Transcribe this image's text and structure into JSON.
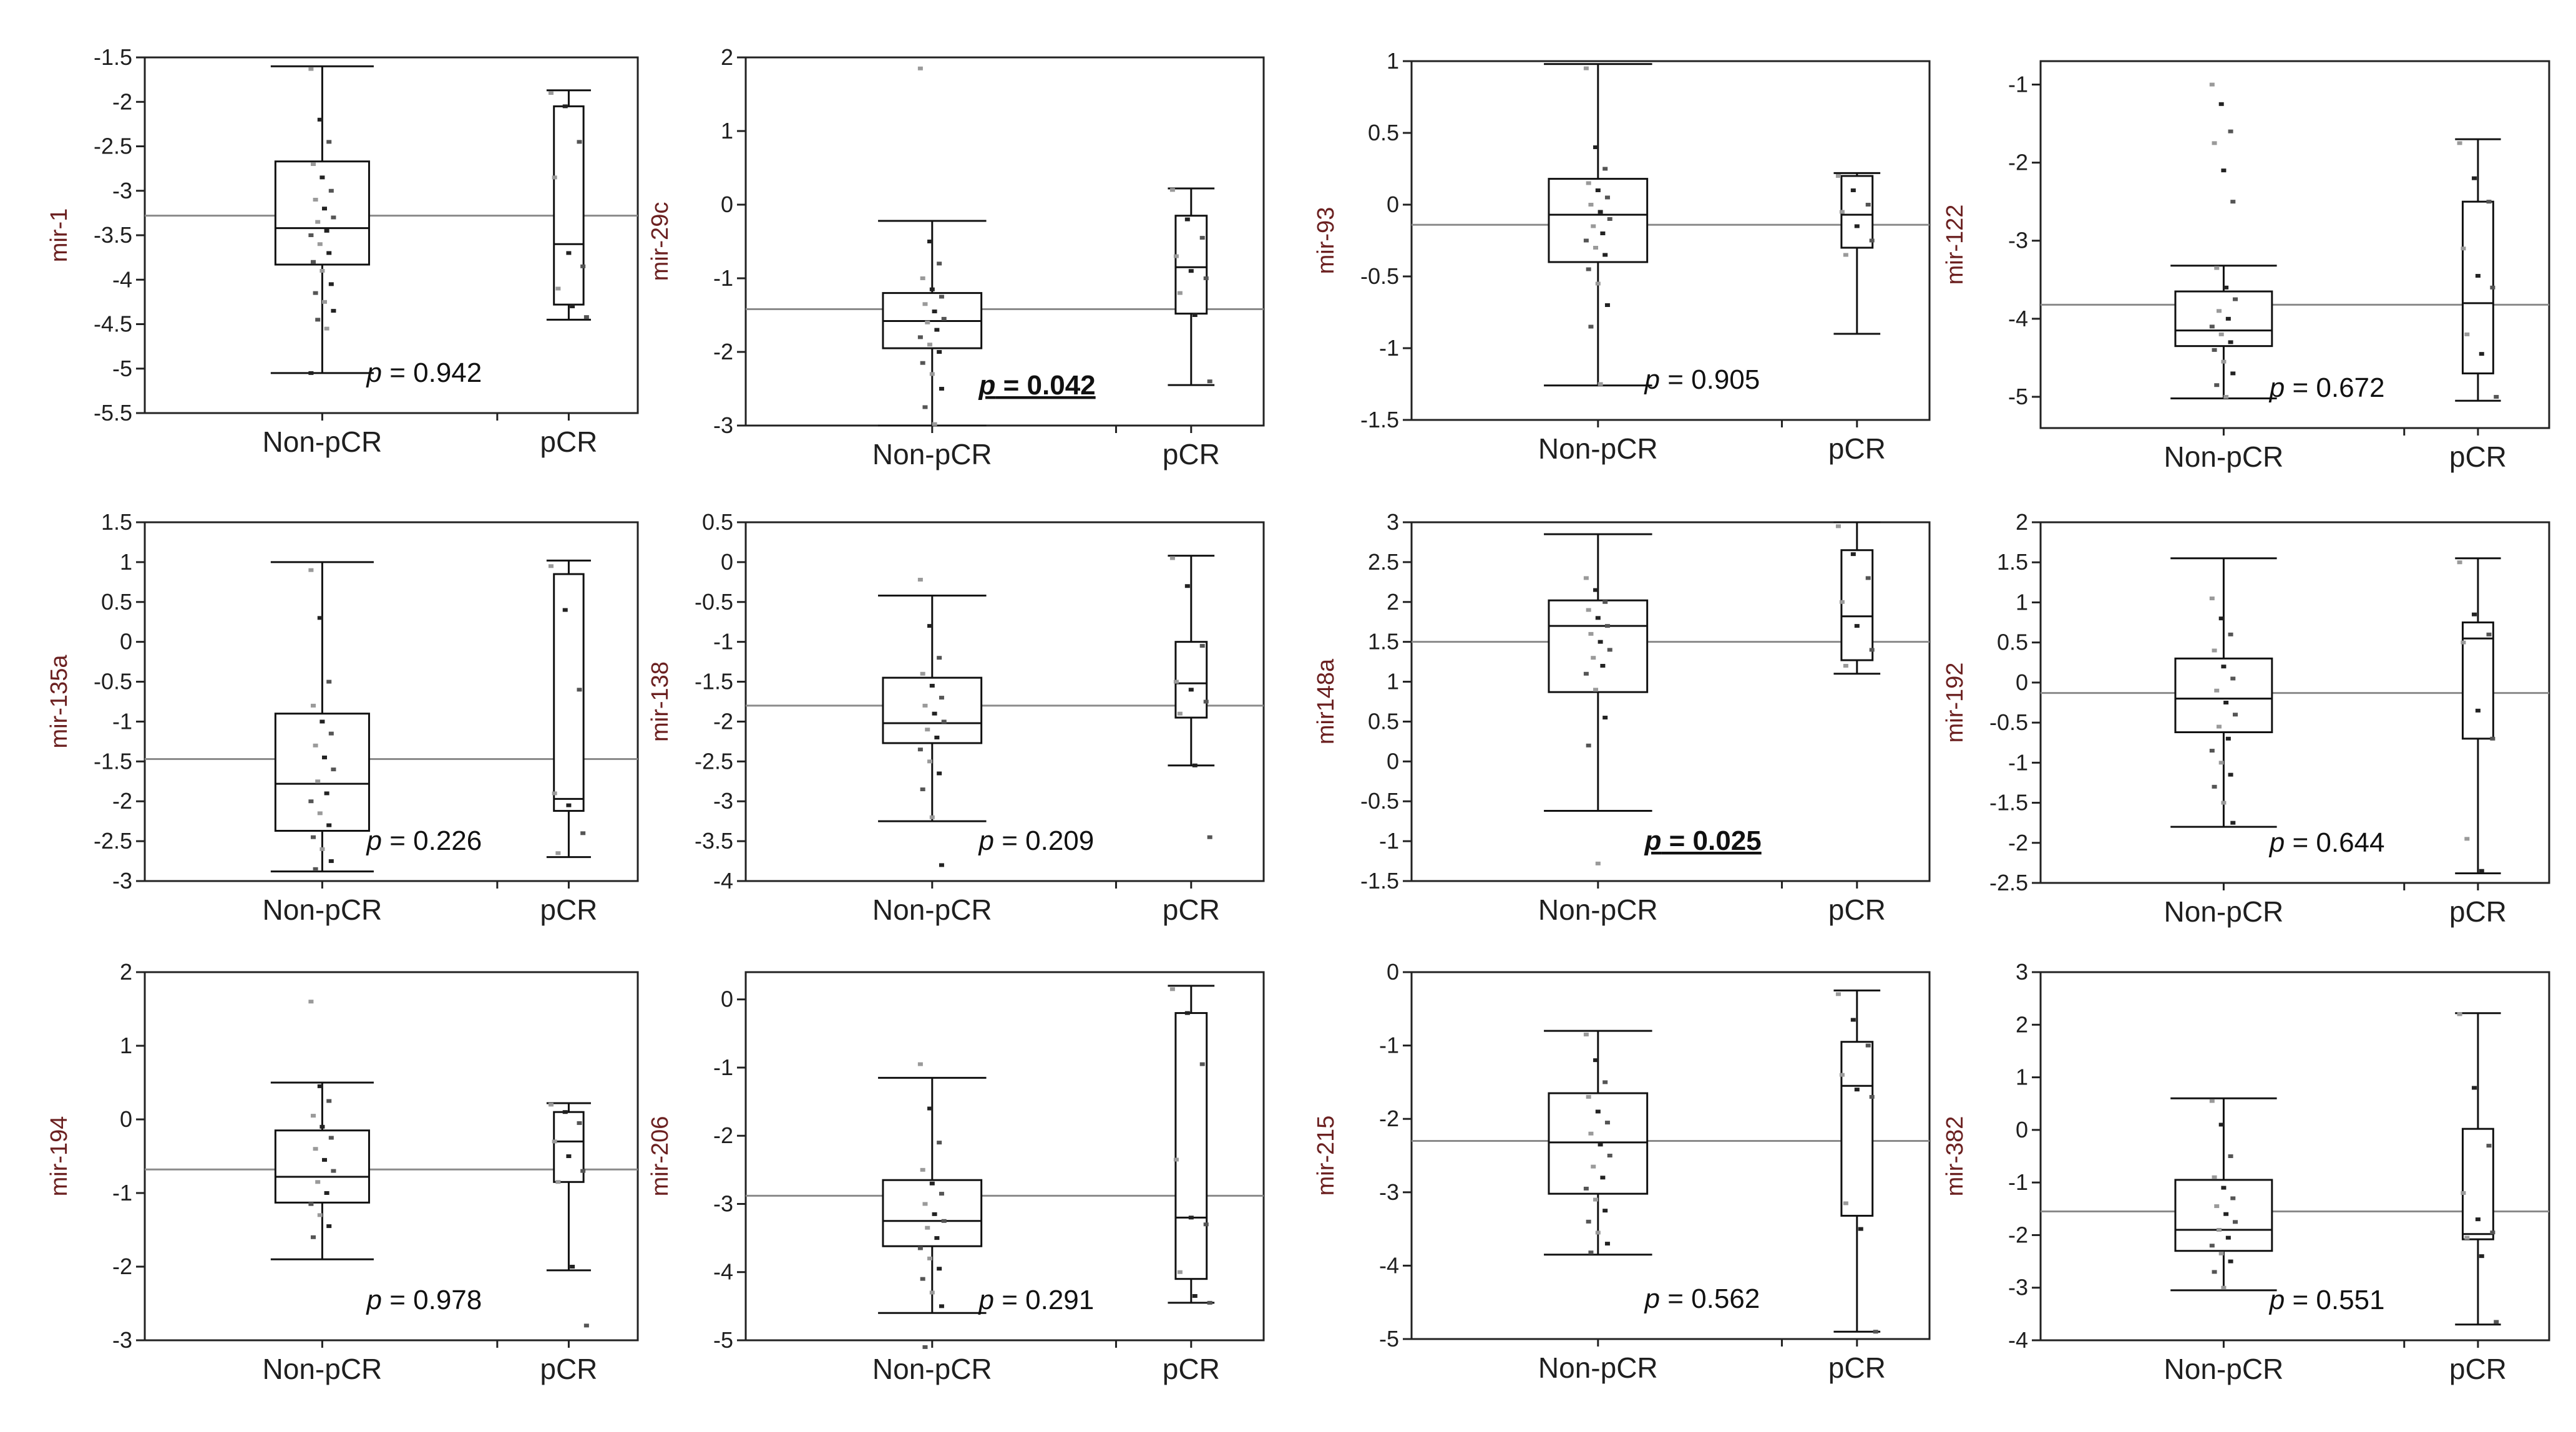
{
  "categories": [
    "Non-pCR",
    "pCR"
  ],
  "chart_data": [
    {
      "type": "box",
      "ylabel": "mir-1",
      "ylim": [
        -5.5,
        -1.5
      ],
      "yticks": [
        "-1.5",
        "-2",
        "-2.5",
        "-3",
        "-3.5",
        "-4",
        "-4.5",
        "-5",
        "-5.5"
      ],
      "p_prefix": "p",
      "p_value": " = 0.942",
      "significant": false,
      "grand_mean": -3.28,
      "groups": [
        {
          "name": "Non-pCR",
          "whisker_low": -5.05,
          "q1": -3.83,
          "median": -3.42,
          "q3": -2.67,
          "whisker_high": -1.6,
          "points": [
            -1.63,
            -2.2,
            -2.45,
            -2.7,
            -2.85,
            -3.0,
            -3.1,
            -3.2,
            -3.3,
            -3.35,
            -3.45,
            -3.5,
            -3.6,
            -3.7,
            -3.8,
            -3.9,
            -4.05,
            -4.15,
            -4.25,
            -4.35,
            -4.45,
            -4.55,
            -5.05
          ]
        },
        {
          "name": "pCR",
          "whisker_low": -4.45,
          "q1": -4.28,
          "median": -3.6,
          "q3": -2.05,
          "whisker_high": -1.87,
          "points": [
            -1.9,
            -2.05,
            -2.45,
            -2.85,
            -3.7,
            -3.85,
            -4.1,
            -4.3,
            -4.42
          ]
        }
      ]
    },
    {
      "type": "box",
      "ylabel": "mir-29c",
      "ylim": [
        -3,
        2
      ],
      "yticks": [
        "2",
        "1",
        "0",
        "-1",
        "-2",
        "-3"
      ],
      "p_prefix": "p",
      "p_value": " = 0.042",
      "significant": true,
      "grand_mean": -1.42,
      "groups": [
        {
          "name": "Non-pCR",
          "whisker_low": -3.0,
          "q1": -1.95,
          "median": -1.58,
          "q3": -1.2,
          "whisker_high": -0.22,
          "points": [
            1.85,
            -0.5,
            -0.8,
            -1.0,
            -1.15,
            -1.25,
            -1.35,
            -1.45,
            -1.55,
            -1.6,
            -1.7,
            -1.8,
            -1.9,
            -2.0,
            -2.15,
            -2.3,
            -2.5,
            -2.75,
            -2.98
          ]
        },
        {
          "name": "pCR",
          "whisker_low": -2.45,
          "q1": -1.48,
          "median": -0.85,
          "q3": -0.15,
          "whisker_high": 0.22,
          "points": [
            0.2,
            -0.2,
            -0.45,
            -0.7,
            -0.9,
            -1.0,
            -1.2,
            -1.5,
            -2.4
          ]
        }
      ]
    },
    {
      "type": "box",
      "ylabel": "mir-93",
      "ylim": [
        -1.5,
        1
      ],
      "yticks": [
        "1",
        "0.5",
        "0",
        "-0.5",
        "-1",
        "-1.5"
      ],
      "p_prefix": "p",
      "p_value": " = 0.905",
      "significant": false,
      "grand_mean": -0.14,
      "groups": [
        {
          "name": "Non-pCR",
          "whisker_low": -1.26,
          "q1": -0.4,
          "median": -0.07,
          "q3": 0.18,
          "whisker_high": 0.98,
          "points": [
            0.95,
            0.4,
            0.25,
            0.15,
            0.1,
            0.05,
            0.0,
            -0.05,
            -0.1,
            -0.15,
            -0.2,
            -0.25,
            -0.3,
            -0.35,
            -0.45,
            -0.55,
            -0.7,
            -0.85,
            -1.25
          ]
        },
        {
          "name": "pCR",
          "whisker_low": -0.9,
          "q1": -0.3,
          "median": -0.07,
          "q3": 0.2,
          "whisker_high": 0.22,
          "points": [
            0.2,
            0.1,
            0.0,
            -0.05,
            -0.15,
            -0.25,
            -0.35
          ]
        }
      ]
    },
    {
      "type": "box",
      "ylabel": "mir-122",
      "ylim": [
        -5.4,
        -0.7
      ],
      "yticks": [
        "-1",
        "-2",
        "-3",
        "-4",
        "-5"
      ],
      "p_prefix": "p",
      "p_value": " = 0.672",
      "significant": false,
      "grand_mean": -3.82,
      "groups": [
        {
          "name": "Non-pCR",
          "whisker_low": -5.02,
          "q1": -4.35,
          "median": -4.15,
          "q3": -3.65,
          "whisker_high": -3.32,
          "points": [
            -1.0,
            -1.25,
            -1.6,
            -1.75,
            -2.1,
            -2.5,
            -3.35,
            -3.6,
            -3.75,
            -3.9,
            -4.0,
            -4.1,
            -4.2,
            -4.3,
            -4.4,
            -4.55,
            -4.7,
            -4.85,
            -5.0
          ]
        },
        {
          "name": "pCR",
          "whisker_low": -5.05,
          "q1": -4.7,
          "median": -3.8,
          "q3": -2.5,
          "whisker_high": -1.7,
          "points": [
            -1.75,
            -2.2,
            -2.5,
            -3.1,
            -3.45,
            -3.6,
            -4.2,
            -4.45,
            -5.0
          ]
        }
      ]
    },
    {
      "type": "box",
      "ylabel": "mir-135a",
      "ylim": [
        -3,
        1.5
      ],
      "yticks": [
        "1.5",
        "1",
        "0.5",
        "0",
        "-0.5",
        "-1",
        "-1.5",
        "-2",
        "-2.5",
        "-3"
      ],
      "p_prefix": "p",
      "p_value": " = 0.226",
      "significant": false,
      "grand_mean": -1.47,
      "groups": [
        {
          "name": "Non-pCR",
          "whisker_low": -2.88,
          "q1": -2.37,
          "median": -1.78,
          "q3": -0.9,
          "whisker_high": 1.0,
          "points": [
            0.9,
            0.3,
            -0.5,
            -0.8,
            -1.0,
            -1.15,
            -1.3,
            -1.45,
            -1.6,
            -1.75,
            -1.9,
            -2.0,
            -2.15,
            -2.3,
            -2.45,
            -2.6,
            -2.75,
            -2.85
          ]
        },
        {
          "name": "pCR",
          "whisker_low": -2.7,
          "q1": -2.12,
          "median": -1.97,
          "q3": 0.85,
          "whisker_high": 1.02,
          "points": [
            0.95,
            0.4,
            -0.6,
            -1.9,
            -2.05,
            -2.4,
            -2.65
          ]
        }
      ]
    },
    {
      "type": "box",
      "ylabel": "mir-138",
      "ylim": [
        -4,
        0.5
      ],
      "yticks": [
        "0.5",
        "0",
        "-0.5",
        "-1",
        "-1.5",
        "-2",
        "-2.5",
        "-3",
        "-3.5",
        "-4"
      ],
      "p_prefix": "p",
      "p_value": " = 0.209",
      "significant": false,
      "grand_mean": -1.8,
      "groups": [
        {
          "name": "Non-pCR",
          "whisker_low": -3.25,
          "q1": -2.27,
          "median": -2.02,
          "q3": -1.45,
          "whisker_high": -0.42,
          "points": [
            -0.22,
            -0.8,
            -1.2,
            -1.4,
            -1.55,
            -1.7,
            -1.8,
            -1.9,
            -2.0,
            -2.1,
            -2.2,
            -2.35,
            -2.5,
            -2.65,
            -2.85,
            -3.2,
            -3.8
          ]
        },
        {
          "name": "pCR",
          "whisker_low": -2.55,
          "q1": -1.95,
          "median": -1.52,
          "q3": -1.0,
          "whisker_high": 0.08,
          "points": [
            0.05,
            -0.3,
            -1.05,
            -1.5,
            -1.6,
            -1.75,
            -1.9,
            -2.55,
            -3.45
          ]
        }
      ]
    },
    {
      "type": "box",
      "ylabel": "mir148a",
      "ylim": [
        -1.5,
        3
      ],
      "yticks": [
        "3",
        "2.5",
        "2",
        "1.5",
        "1",
        "0.5",
        "0",
        "-0.5",
        "-1",
        "-1.5"
      ],
      "p_prefix": "p",
      "p_value": " = 0.025",
      "significant": true,
      "grand_mean": 1.5,
      "groups": [
        {
          "name": "Non-pCR",
          "whisker_low": -0.62,
          "q1": 0.87,
          "median": 1.7,
          "q3": 2.02,
          "whisker_high": 2.85,
          "points": [
            2.3,
            2.15,
            2.0,
            1.9,
            1.8,
            1.7,
            1.6,
            1.5,
            1.4,
            1.3,
            1.2,
            1.1,
            0.9,
            0.55,
            0.2,
            -1.28
          ]
        },
        {
          "name": "pCR",
          "whisker_low": 1.1,
          "q1": 1.27,
          "median": 1.82,
          "q3": 2.65,
          "whisker_high": 3.0,
          "points": [
            2.95,
            2.6,
            2.3,
            2.0,
            1.7,
            1.4,
            1.2
          ]
        }
      ]
    },
    {
      "type": "box",
      "ylabel": "mir-192",
      "ylim": [
        -2.5,
        2
      ],
      "yticks": [
        "2",
        "1.5",
        "1",
        "0.5",
        "0",
        "-0.5",
        "-1",
        "-1.5",
        "-2",
        "-2.5"
      ],
      "p_prefix": "p",
      "p_value": " = 0.644",
      "significant": false,
      "grand_mean": -0.13,
      "groups": [
        {
          "name": "Non-pCR",
          "whisker_low": -1.8,
          "q1": -0.62,
          "median": -0.2,
          "q3": 0.3,
          "whisker_high": 1.55,
          "points": [
            1.05,
            0.8,
            0.6,
            0.4,
            0.2,
            0.05,
            -0.1,
            -0.25,
            -0.4,
            -0.55,
            -0.7,
            -0.85,
            -1.0,
            -1.15,
            -1.3,
            -1.5,
            -1.75
          ]
        },
        {
          "name": "pCR",
          "whisker_low": -2.38,
          "q1": -0.7,
          "median": 0.55,
          "q3": 0.75,
          "whisker_high": 1.55,
          "points": [
            1.5,
            0.85,
            0.6,
            0.5,
            -0.35,
            -0.7,
            -1.95,
            -2.35
          ]
        }
      ]
    },
    {
      "type": "box",
      "ylabel": "mir-194",
      "ylim": [
        -3,
        2
      ],
      "yticks": [
        "2",
        "1",
        "0",
        "-1",
        "-2",
        "-3"
      ],
      "p_prefix": "p",
      "p_value": " = 0.978",
      "significant": false,
      "grand_mean": -0.68,
      "groups": [
        {
          "name": "Non-pCR",
          "whisker_low": -1.9,
          "q1": -1.13,
          "median": -0.78,
          "q3": -0.15,
          "whisker_high": 0.5,
          "points": [
            1.6,
            0.45,
            0.25,
            0.05,
            -0.1,
            -0.25,
            -0.4,
            -0.55,
            -0.7,
            -0.85,
            -1.0,
            -1.15,
            -1.3,
            -1.45,
            -1.6
          ]
        },
        {
          "name": "pCR",
          "whisker_low": -2.05,
          "q1": -0.85,
          "median": -0.3,
          "q3": 0.1,
          "whisker_high": 0.22,
          "points": [
            0.2,
            0.1,
            -0.05,
            -0.3,
            -0.5,
            -0.7,
            -0.85,
            -2.0,
            -2.8
          ]
        }
      ]
    },
    {
      "type": "box",
      "ylabel": "mir-206",
      "ylim": [
        -5,
        0.4
      ],
      "yticks": [
        "0",
        "-1",
        "-2",
        "-3",
        "-4",
        "-5"
      ],
      "p_prefix": "p",
      "p_value": " = 0.291",
      "significant": false,
      "grand_mean": -2.88,
      "groups": [
        {
          "name": "Non-pCR",
          "whisker_low": -4.6,
          "q1": -3.62,
          "median": -3.25,
          "q3": -2.65,
          "whisker_high": -1.15,
          "points": [
            -0.95,
            -1.6,
            -2.1,
            -2.5,
            -2.7,
            -2.85,
            -3.0,
            -3.15,
            -3.25,
            -3.35,
            -3.5,
            -3.65,
            -3.8,
            -3.95,
            -4.1,
            -4.3,
            -4.5,
            -5.1
          ]
        },
        {
          "name": "pCR",
          "whisker_low": -4.45,
          "q1": -4.1,
          "median": -3.2,
          "q3": -0.2,
          "whisker_high": 0.2,
          "points": [
            0.15,
            -0.2,
            -0.95,
            -2.35,
            -3.2,
            -3.3,
            -4.0,
            -4.35,
            -4.45
          ]
        }
      ]
    },
    {
      "type": "box",
      "ylabel": "mir-215",
      "ylim": [
        -5,
        0
      ],
      "yticks": [
        "0",
        "-1",
        "-2",
        "-3",
        "-4",
        "-5"
      ],
      "p_prefix": "p",
      "p_value": " = 0.562",
      "significant": false,
      "grand_mean": -2.3,
      "groups": [
        {
          "name": "Non-pCR",
          "whisker_low": -3.85,
          "q1": -3.02,
          "median": -2.32,
          "q3": -1.65,
          "whisker_high": -0.8,
          "points": [
            -0.85,
            -1.2,
            -1.5,
            -1.7,
            -1.9,
            -2.05,
            -2.2,
            -2.35,
            -2.5,
            -2.65,
            -2.8,
            -2.95,
            -3.1,
            -3.25,
            -3.4,
            -3.55,
            -3.7,
            -3.82
          ]
        },
        {
          "name": "pCR",
          "whisker_low": -4.9,
          "q1": -3.32,
          "median": -1.55,
          "q3": -0.95,
          "whisker_high": -0.25,
          "points": [
            -0.3,
            -0.65,
            -1.0,
            -1.4,
            -1.6,
            -1.7,
            -3.15,
            -3.5,
            -4.9
          ]
        }
      ]
    },
    {
      "type": "box",
      "ylabel": "mir-382",
      "ylim": [
        -4,
        3
      ],
      "yticks": [
        "3",
        "2",
        "1",
        "0",
        "-1",
        "-2",
        "-3",
        "-4"
      ],
      "p_prefix": "p",
      "p_value": " = 0.551",
      "significant": false,
      "grand_mean": -1.55,
      "groups": [
        {
          "name": "Non-pCR",
          "whisker_low": -3.05,
          "q1": -2.3,
          "median": -1.9,
          "q3": -0.95,
          "whisker_high": 0.6,
          "points": [
            0.55,
            0.1,
            -0.5,
            -0.9,
            -1.1,
            -1.3,
            -1.45,
            -1.6,
            -1.75,
            -1.9,
            -2.05,
            -2.2,
            -2.35,
            -2.5,
            -2.7,
            -3.0
          ]
        },
        {
          "name": "pCR",
          "whisker_low": -3.7,
          "q1": -2.08,
          "median": -1.98,
          "q3": 0.02,
          "whisker_high": 2.22,
          "points": [
            2.2,
            0.8,
            -0.3,
            -1.2,
            -1.7,
            -1.95,
            -2.05,
            -2.4,
            -3.65
          ]
        }
      ]
    }
  ]
}
